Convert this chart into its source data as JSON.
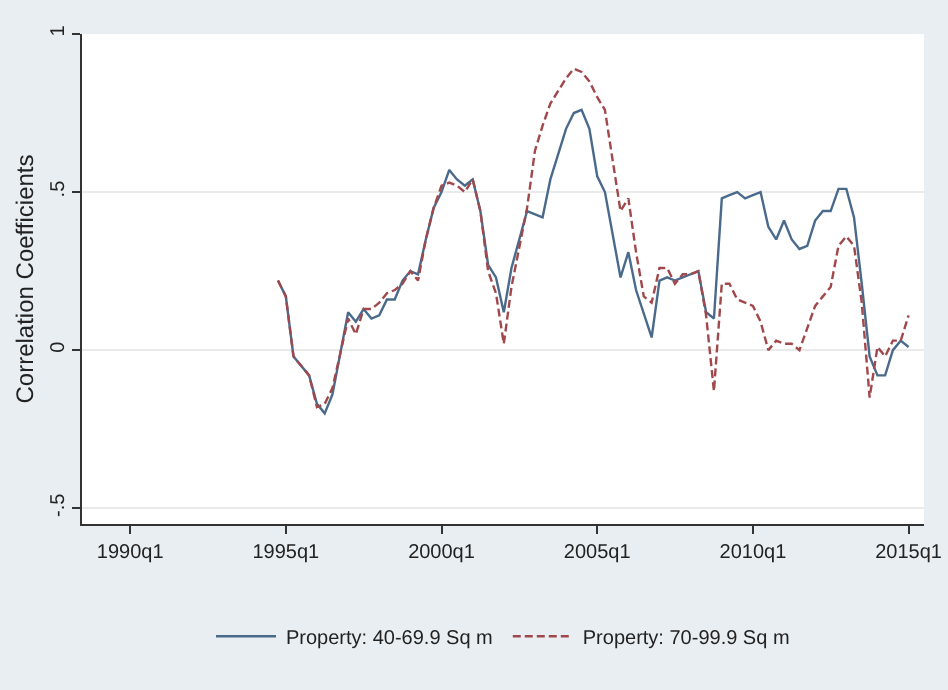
{
  "chart_data": {
    "type": "line",
    "ylabel": "Correlation Coefficients",
    "xlim": [
      "1988-06-15",
      "2015-07"
    ],
    "ylim": [
      -0.55,
      1.0
    ],
    "xticks": [
      {
        "value": "1990-01",
        "label": "1990q1"
      },
      {
        "value": "1995-01",
        "label": "1995q1"
      },
      {
        "value": "2000-01",
        "label": "2000q1"
      },
      {
        "value": "2005-01",
        "label": "2005q1"
      },
      {
        "value": "2010-01",
        "label": "2010q1"
      },
      {
        "value": "2015-01",
        "label": "2015q1"
      }
    ],
    "yticks": [
      {
        "value": -0.5,
        "label": "-.5"
      },
      0,
      {
        "value": 0.5,
        "label": ".5"
      },
      1
    ],
    "grid": "y",
    "legend": "bottom",
    "marker": "none",
    "series": [
      {
        "name": "Property: 40-69.9 Sq m",
        "color": "#4a6a8c",
        "line_style": "solid",
        "x": [
          "1994-10",
          "1995-01",
          "1995-04",
          "1995-10",
          "1996-01",
          "1996-04",
          "1996-07",
          "1997-01",
          "1997-04",
          "1997-07",
          "1997-10",
          "1998-01",
          "1998-04",
          "1998-07",
          "1998-10",
          "1999-01",
          "1999-04",
          "1999-07",
          "1999-10",
          "2000-01",
          "2000-04",
          "2000-07",
          "2000-10",
          "2001-01",
          "2001-04",
          "2001-07",
          "2001-10",
          "2002-01",
          "2002-04",
          "2002-10",
          "2003-04",
          "2003-07",
          "2004-01",
          "2004-04",
          "2004-07",
          "2004-10",
          "2005-01",
          "2005-04",
          "2005-10",
          "2006-01",
          "2006-04",
          "2006-10",
          "2007-01",
          "2007-04",
          "2007-07",
          "2007-10",
          "2008-01",
          "2008-04",
          "2008-07",
          "2008-10",
          "2009-01",
          "2009-04",
          "2009-07",
          "2009-10",
          "2010-01",
          "2010-04",
          "2010-07",
          "2010-10",
          "2011-01",
          "2011-04",
          "2011-07",
          "2011-10",
          "2012-01",
          "2012-04",
          "2012-07",
          "2012-10",
          "2013-01",
          "2013-04",
          "2013-07",
          "2013-10",
          "2014-01",
          "2014-04",
          "2014-07",
          "2014-10",
          "2015-01"
        ],
        "values": [
          0.22,
          0.17,
          -0.02,
          -0.08,
          -0.17,
          -0.2,
          -0.14,
          0.12,
          0.09,
          0.13,
          0.1,
          0.11,
          0.16,
          0.16,
          0.22,
          0.25,
          0.24,
          0.35,
          0.45,
          0.5,
          0.57,
          0.54,
          0.52,
          0.54,
          0.44,
          0.27,
          0.23,
          0.12,
          0.26,
          0.44,
          0.42,
          0.54,
          0.7,
          0.75,
          0.76,
          0.7,
          0.55,
          0.5,
          0.23,
          0.31,
          0.19,
          0.04,
          0.22,
          0.23,
          0.22,
          0.23,
          0.24,
          0.25,
          0.12,
          0.1,
          0.48,
          0.49,
          0.5,
          0.48,
          0.49,
          0.5,
          0.39,
          0.35,
          0.41,
          0.35,
          0.32,
          0.33,
          0.41,
          0.44,
          0.44,
          0.51,
          0.51,
          0.42,
          0.21,
          -0.02,
          -0.08,
          -0.08,
          0,
          0.03,
          0.01
        ]
      },
      {
        "name": "Property: 70-99.9 Sq m",
        "color": "#a0484c",
        "line_style": "dashed",
        "x": [
          "1994-10",
          "1995-01",
          "1995-04",
          "1995-10",
          "1996-01",
          "1996-04",
          "1996-07",
          "1997-01",
          "1997-04",
          "1997-07",
          "1997-10",
          "1998-01",
          "1998-04",
          "1998-07",
          "1998-10",
          "1999-01",
          "1999-04",
          "1999-07",
          "1999-10",
          "2000-01",
          "2000-04",
          "2000-07",
          "2000-10",
          "2001-01",
          "2001-04",
          "2001-07",
          "2001-10",
          "2002-01",
          "2002-04",
          "2002-10",
          "2003-01",
          "2003-04",
          "2003-07",
          "2004-01",
          "2004-04",
          "2004-07",
          "2004-10",
          "2005-01",
          "2005-04",
          "2005-07",
          "2005-10",
          "2006-01",
          "2006-04",
          "2006-07",
          "2006-10",
          "2007-01",
          "2007-04",
          "2007-07",
          "2007-10",
          "2008-01",
          "2008-04",
          "2008-07",
          "2008-10",
          "2009-01",
          "2009-04",
          "2009-07",
          "2009-10",
          "2010-01",
          "2010-04",
          "2010-07",
          "2010-10",
          "2011-01",
          "2011-04",
          "2011-07",
          "2012-01",
          "2012-04",
          "2012-07",
          "2012-10",
          "2013-01",
          "2013-04",
          "2013-07",
          "2013-10",
          "2014-01",
          "2014-04",
          "2014-07",
          "2014-10",
          "2015-01"
        ],
        "values": [
          0.22,
          0.17,
          -0.02,
          -0.08,
          -0.18,
          -0.17,
          -0.12,
          0.1,
          0.05,
          0.13,
          0.13,
          0.15,
          0.18,
          0.19,
          0.21,
          0.25,
          0.22,
          0.35,
          0.45,
          0.52,
          0.53,
          0.52,
          0.5,
          0.54,
          0.44,
          0.25,
          0.18,
          0.02,
          0.2,
          0.45,
          0.63,
          0.71,
          0.78,
          0.86,
          0.89,
          0.88,
          0.85,
          0.8,
          0.76,
          0.6,
          0.44,
          0.48,
          0.31,
          0.17,
          0.15,
          0.26,
          0.26,
          0.21,
          0.24,
          0.24,
          0.25,
          0.11,
          -0.13,
          0.21,
          0.21,
          0.16,
          0.15,
          0.14,
          0.09,
          0,
          0.03,
          0.02,
          0.02,
          0,
          0.14,
          0.17,
          0.2,
          0.33,
          0.36,
          0.33,
          0.15,
          -0.15,
          0.01,
          -0.02,
          0.03,
          0.03,
          0.11
        ]
      }
    ]
  }
}
